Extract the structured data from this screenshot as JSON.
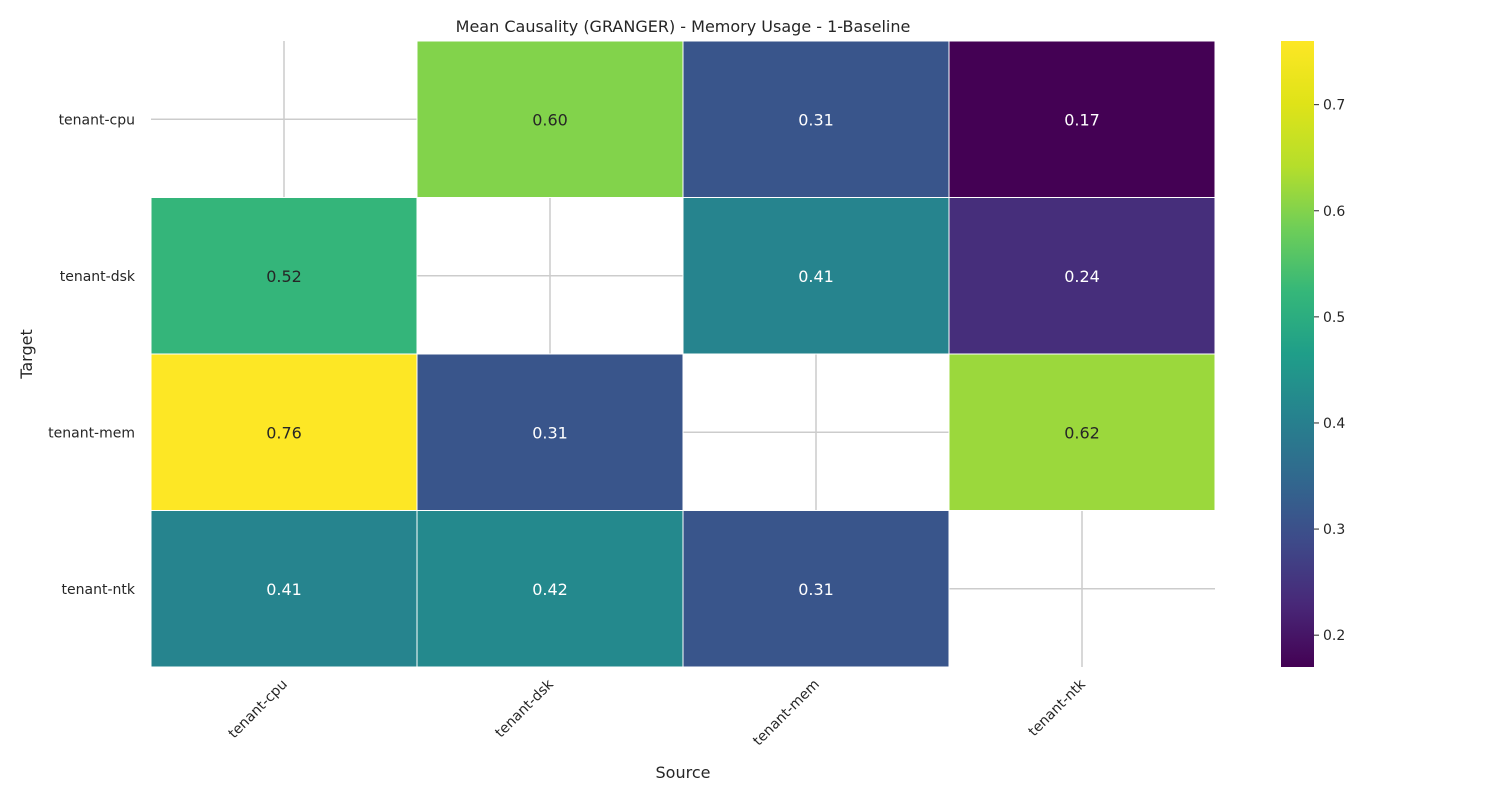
{
  "chart_data": {
    "type": "heatmap",
    "title": "Mean Causality (GRANGER) - Memory Usage - 1-Baseline",
    "xlabel": "Source",
    "ylabel": "Target",
    "x_categories": [
      "tenant-cpu",
      "tenant-dsk",
      "tenant-mem",
      "tenant-ntk"
    ],
    "y_categories": [
      "tenant-cpu",
      "tenant-dsk",
      "tenant-mem",
      "tenant-ntk"
    ],
    "values": [
      [
        null,
        0.6,
        0.31,
        0.17
      ],
      [
        0.52,
        null,
        0.41,
        0.24
      ],
      [
        0.76,
        0.31,
        null,
        0.62
      ],
      [
        0.41,
        0.42,
        0.31,
        null
      ]
    ],
    "value_labels": [
      [
        "",
        "0.60",
        "0.31",
        "0.17"
      ],
      [
        "0.52",
        "",
        "0.41",
        "0.24"
      ],
      [
        "0.76",
        "0.31",
        "",
        "0.62"
      ],
      [
        "0.41",
        "0.42",
        "0.31",
        ""
      ]
    ],
    "colormap": "viridis",
    "vmin": 0.17,
    "vmax": 0.76,
    "colorbar_ticks": [
      0.2,
      0.3,
      0.4,
      0.5,
      0.6,
      0.7
    ],
    "colorbar_tick_labels": [
      "0.2",
      "0.3",
      "0.4",
      "0.5",
      "0.6",
      "0.7"
    ],
    "grid": true,
    "colors": {
      "grid_line": "#cccccc",
      "cell_border": "#ffffff",
      "text_dark": "#262626",
      "text_light": "#ffffff"
    }
  }
}
